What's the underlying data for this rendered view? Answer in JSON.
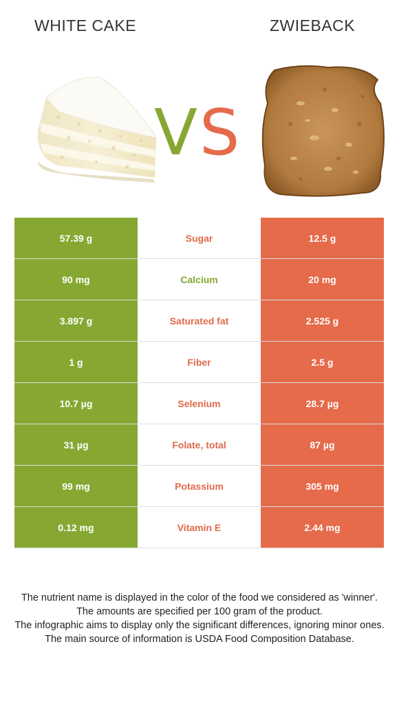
{
  "header": {
    "left_food": "WHITE CAKE",
    "right_food": "ZWIEBACK",
    "vs_v": "V",
    "vs_s": "S"
  },
  "colors": {
    "winner_left": "#86a833",
    "winner_right": "#e56b4b"
  },
  "rows": [
    {
      "nutrient": "Sugar",
      "left": "57.39 g",
      "right": "12.5 g",
      "winner": "right"
    },
    {
      "nutrient": "Calcium",
      "left": "90 mg",
      "right": "20 mg",
      "winner": "left"
    },
    {
      "nutrient": "Saturated fat",
      "left": "3.897 g",
      "right": "2.525 g",
      "winner": "right"
    },
    {
      "nutrient": "Fiber",
      "left": "1 g",
      "right": "2.5 g",
      "winner": "right"
    },
    {
      "nutrient": "Selenium",
      "left": "10.7 µg",
      "right": "28.7 µg",
      "winner": "right"
    },
    {
      "nutrient": "Folate, total",
      "left": "31 µg",
      "right": "87 µg",
      "winner": "right"
    },
    {
      "nutrient": "Potassium",
      "left": "99 mg",
      "right": "305 mg",
      "winner": "right"
    },
    {
      "nutrient": "Vitamin E",
      "left": "0.12 mg",
      "right": "2.44 mg",
      "winner": "right"
    }
  ],
  "footnote": [
    "The nutrient name is displayed in the color of the food we considered as 'winner'.",
    "The amounts are specified per 100 gram of the product.",
    "The infographic aims to display only the significant differences, ignoring minor ones.",
    "The main source of information is USDA Food Composition Database."
  ]
}
